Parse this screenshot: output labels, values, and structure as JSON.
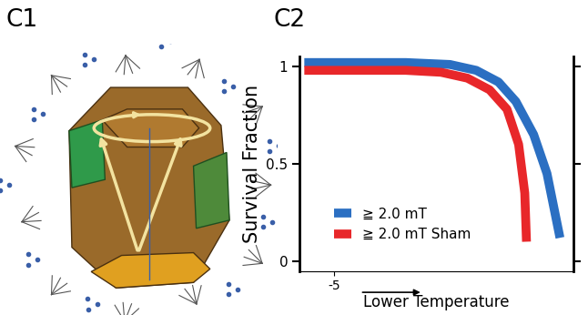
{
  "panel_labels": [
    "C1",
    "C2"
  ],
  "chart_data": {
    "type": "line",
    "x_label": "Lower Temperature",
    "y_label": "Survival Fraction",
    "xlim": [
      -6,
      2
    ],
    "xticks": [
      -5
    ],
    "ylim": [
      -0.05,
      1.05
    ],
    "yticks": [
      0,
      0.5,
      1
    ],
    "legend": "lower left",
    "grid": false,
    "series": [
      {
        "name": "≧ 2.0 mT",
        "color": "#2b6fc2",
        "x": [
          -5.87,
          -2.9,
          -1.61,
          -0.84,
          -0.19,
          0.32,
          0.84,
          1.23,
          1.61
        ],
        "values": [
          1.02,
          1.02,
          1.01,
          0.98,
          0.92,
          0.82,
          0.65,
          0.45,
          0.12
        ]
      },
      {
        "name": "≧ 2.0 mT Sham",
        "color": "#e8272a",
        "x": [
          -5.87,
          -2.9,
          -1.87,
          -1.1,
          -0.45,
          0.06,
          0.4,
          0.58,
          0.63
        ],
        "values": [
          0.98,
          0.98,
          0.97,
          0.94,
          0.88,
          0.78,
          0.6,
          0.35,
          0.1
        ]
      }
    ]
  }
}
